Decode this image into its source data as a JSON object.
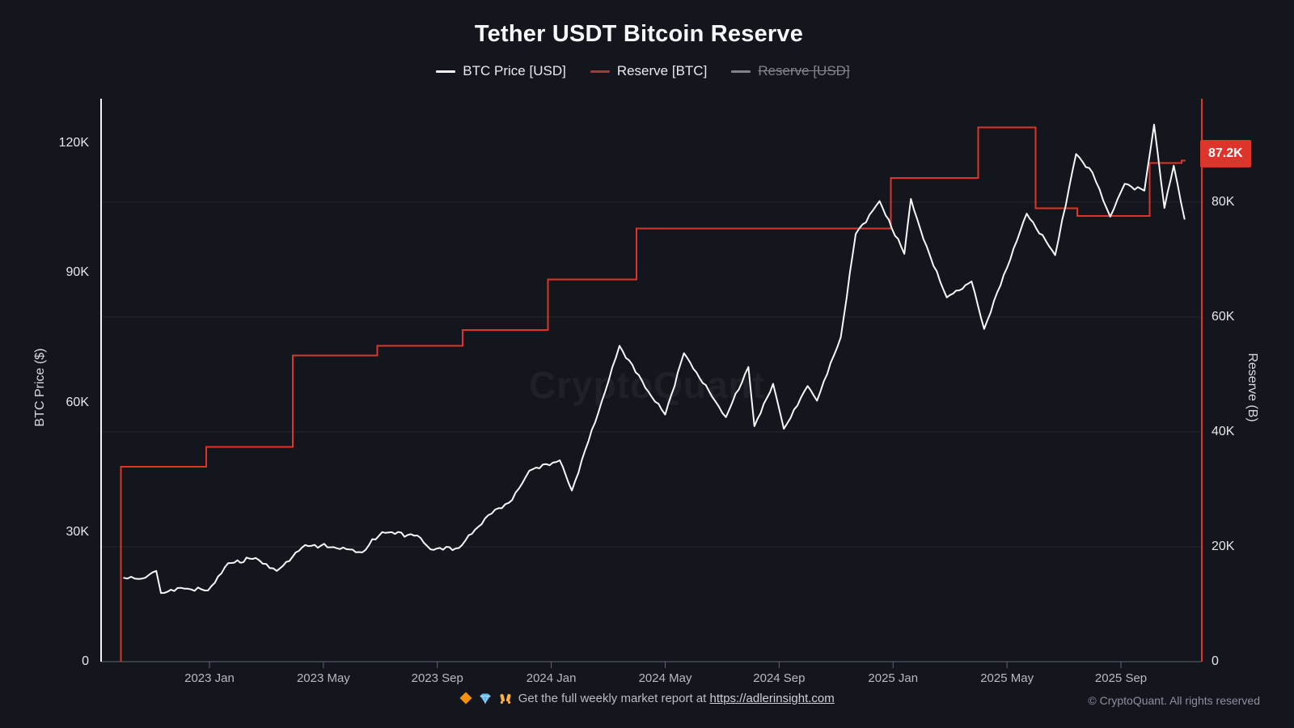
{
  "title": "Tether USDT Bitcoin Reserve",
  "watermark": "CryptoQuant",
  "legend": [
    {
      "label": "BTC Price [USD]",
      "color": "#f0f1f3",
      "disabled": false
    },
    {
      "label": "Reserve [BTC]",
      "color": "#9c3c3e",
      "disabled": false
    },
    {
      "label": "Reserve [USD]",
      "color": "#80838a",
      "disabled": true
    }
  ],
  "badge": {
    "label": "87.2K",
    "color": "#dd352c"
  },
  "footer": {
    "icons": [
      "orange-diamond",
      "blue-gem",
      "raised-hands"
    ],
    "promo_prefix": "Get the full weekly market report at",
    "promo_link": "https://adlerinsight.com",
    "copyright": "© CryptoQuant. All rights reserved"
  },
  "chart_data": {
    "type": "line",
    "title": "Tether USDT Bitcoin Reserve",
    "grid": "horizontal-right-axis-ticks",
    "colors": {
      "price_line": "#f7f8f9",
      "reserve_line": "#dd352c",
      "right_axis": "#dd352c",
      "left_axis": "#f2f3f5"
    },
    "left_axis": {
      "title": "BTC Price ($)",
      "unit": "USD",
      "ticks": [
        "0",
        "30K",
        "60K",
        "90K",
        "120K"
      ],
      "range": [
        0,
        130300
      ]
    },
    "right_axis": {
      "title": "Reserve (B)",
      "unit": "BTC",
      "ticks": [
        "0",
        "20K",
        "40K",
        "60K",
        "80K"
      ],
      "range": [
        0,
        98000
      ]
    },
    "x_axis": {
      "ticks": [
        "2023 Jan",
        "2023 May",
        "2023 Sep",
        "2024 Jan",
        "2024 May",
        "2024 Sep",
        "2025 Jan",
        "2025 May",
        "2025 Sep"
      ]
    },
    "current_reserve_label": "87.2K",
    "series": [
      {
        "name": "BTC Price [USD]",
        "style": "line",
        "color": "#f7f8f9",
        "axis": "left",
        "points": [
          {
            "d": "2022-10-01",
            "v": 19400
          },
          {
            "d": "2022-10-20",
            "v": 19200
          },
          {
            "d": "2022-11-05",
            "v": 21000
          },
          {
            "d": "2022-11-10",
            "v": 15900
          },
          {
            "d": "2022-12-01",
            "v": 17100
          },
          {
            "d": "2022-12-30",
            "v": 16500
          },
          {
            "d": "2023-01-21",
            "v": 22800
          },
          {
            "d": "2023-02-20",
            "v": 24000
          },
          {
            "d": "2023-03-12",
            "v": 21000
          },
          {
            "d": "2023-04-12",
            "v": 27000
          },
          {
            "d": "2023-05-12",
            "v": 26500
          },
          {
            "d": "2023-06-12",
            "v": 25300
          },
          {
            "d": "2023-07-03",
            "v": 30000
          },
          {
            "d": "2023-08-10",
            "v": 29200
          },
          {
            "d": "2023-08-24",
            "v": 26000
          },
          {
            "d": "2023-09-24",
            "v": 26300
          },
          {
            "d": "2023-10-25",
            "v": 33900
          },
          {
            "d": "2023-11-20",
            "v": 37400
          },
          {
            "d": "2023-12-08",
            "v": 44200
          },
          {
            "d": "2024-01-10",
            "v": 46600
          },
          {
            "d": "2024-01-23",
            "v": 39600
          },
          {
            "d": "2024-02-28",
            "v": 62400
          },
          {
            "d": "2024-03-13",
            "v": 73100
          },
          {
            "d": "2024-04-17",
            "v": 61300
          },
          {
            "d": "2024-05-01",
            "v": 57200
          },
          {
            "d": "2024-05-21",
            "v": 71400
          },
          {
            "d": "2024-06-24",
            "v": 60300
          },
          {
            "d": "2024-07-05",
            "v": 56600
          },
          {
            "d": "2024-07-29",
            "v": 68200
          },
          {
            "d": "2024-08-05",
            "v": 54500
          },
          {
            "d": "2024-08-25",
            "v": 64300
          },
          {
            "d": "2024-09-06",
            "v": 53900
          },
          {
            "d": "2024-10-01",
            "v": 63800
          },
          {
            "d": "2024-10-11",
            "v": 60400
          },
          {
            "d": "2024-11-06",
            "v": 75100
          },
          {
            "d": "2024-11-22",
            "v": 99000
          },
          {
            "d": "2024-12-17",
            "v": 106600
          },
          {
            "d": "2025-01-13",
            "v": 94400
          },
          {
            "d": "2025-01-20",
            "v": 107100
          },
          {
            "d": "2025-02-03",
            "v": 97800
          },
          {
            "d": "2025-02-28",
            "v": 84300
          },
          {
            "d": "2025-03-24",
            "v": 88000
          },
          {
            "d": "2025-04-07",
            "v": 77000
          },
          {
            "d": "2025-05-22",
            "v": 103700
          },
          {
            "d": "2025-06-22",
            "v": 94100
          },
          {
            "d": "2025-07-14",
            "v": 117500
          },
          {
            "d": "2025-08-01",
            "v": 113200
          },
          {
            "d": "2025-08-20",
            "v": 103000
          },
          {
            "d": "2025-09-05",
            "v": 110600
          },
          {
            "d": "2025-09-26",
            "v": 109000
          },
          {
            "d": "2025-10-06",
            "v": 124300
          },
          {
            "d": "2025-10-17",
            "v": 105000
          },
          {
            "d": "2025-10-27",
            "v": 114800
          },
          {
            "d": "2025-11-08",
            "v": 102500
          }
        ]
      },
      {
        "name": "Reserve [BTC]",
        "style": "step",
        "color": "#dd352c",
        "axis": "right",
        "points": [
          {
            "d": "2022-09-28",
            "v": 33900
          },
          {
            "d": "2022-12-28",
            "v": 37400
          },
          {
            "d": "2023-03-29",
            "v": 53300
          },
          {
            "d": "2023-06-28",
            "v": 55000
          },
          {
            "d": "2023-09-28",
            "v": 57700
          },
          {
            "d": "2023-12-28",
            "v": 66500
          },
          {
            "d": "2024-03-31",
            "v": 75400
          },
          {
            "d": "2024-12-29",
            "v": 84200
          },
          {
            "d": "2025-03-31",
            "v": 93000
          },
          {
            "d": "2025-06-01",
            "v": 78900
          },
          {
            "d": "2025-07-15",
            "v": 77600
          },
          {
            "d": "2025-10-01",
            "v": 86800
          },
          {
            "d": "2025-11-05",
            "v": 87200
          }
        ]
      },
      {
        "name": "Reserve [USD]",
        "style": "line",
        "color": "#80838a",
        "axis": "right",
        "disabled": true,
        "points": []
      }
    ]
  }
}
